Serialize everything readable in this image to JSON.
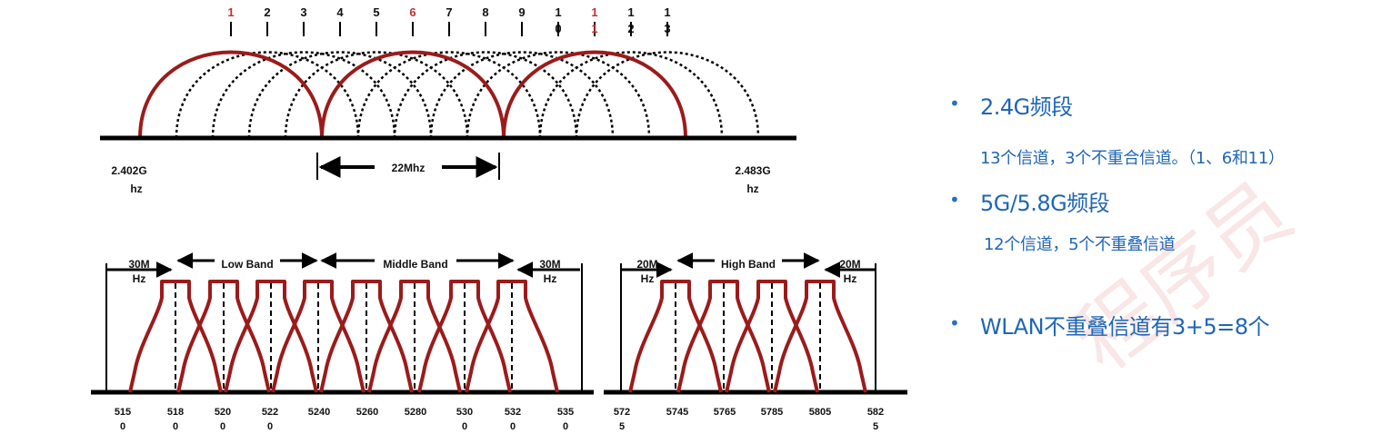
{
  "watermark": "程序员",
  "top_diagram": {
    "channel_ticks": [
      {
        "line1": "1",
        "line2": "",
        "red": true
      },
      {
        "line1": "2",
        "line2": "",
        "red": false
      },
      {
        "line1": "3",
        "line2": "",
        "red": false
      },
      {
        "line1": "4",
        "line2": "",
        "red": false
      },
      {
        "line1": "5",
        "line2": "",
        "red": false
      },
      {
        "line1": "6",
        "line2": "",
        "red": true
      },
      {
        "line1": "7",
        "line2": "",
        "red": false
      },
      {
        "line1": "8",
        "line2": "",
        "red": false
      },
      {
        "line1": "9",
        "line2": "",
        "red": false
      },
      {
        "line1": "1",
        "line2": "0",
        "red": false
      },
      {
        "line1": "1",
        "line2": "1",
        "red": true
      },
      {
        "line1": "1",
        "line2": "2",
        "red": false
      },
      {
        "line1": "1",
        "line2": "3",
        "red": false
      }
    ],
    "start_freq": {
      "line1": "2.402G",
      "line2": "hz"
    },
    "end_freq": {
      "line1": "2.483G",
      "line2": "hz"
    },
    "width_label": "22Mhz"
  },
  "bottom_left": {
    "guard_left": {
      "line1": "30M",
      "line2": "Hz"
    },
    "guard_right": {
      "line1": "30M",
      "line2": "Hz"
    },
    "band_low": "Low Band",
    "band_middle": "Middle Band",
    "freqs": [
      {
        "line1": "515",
        "line2": "0"
      },
      {
        "line1": "518",
        "line2": "0"
      },
      {
        "line1": "520",
        "line2": "0"
      },
      {
        "line1": "522",
        "line2": "0"
      },
      {
        "line1": "5240",
        "line2": ""
      },
      {
        "line1": "5260",
        "line2": ""
      },
      {
        "line1": "5280",
        "line2": ""
      },
      {
        "line1": "530",
        "line2": "0"
      },
      {
        "line1": "532",
        "line2": "0"
      },
      {
        "line1": "535",
        "line2": "0"
      }
    ]
  },
  "bottom_right": {
    "guard_left": {
      "line1": "20M",
      "line2": "Hz"
    },
    "guard_right": {
      "line1": "20M",
      "line2": "Hz"
    },
    "band_high": "High Band",
    "freqs": [
      {
        "line1": "572",
        "line2": "5"
      },
      {
        "line1": "5745",
        "line2": ""
      },
      {
        "line1": "5765",
        "line2": ""
      },
      {
        "line1": "5785",
        "line2": ""
      },
      {
        "line1": "5805",
        "line2": ""
      },
      {
        "line1": "582",
        "line2": "5"
      }
    ]
  },
  "bullets": [
    {
      "dot": "•",
      "title": "2.4G频段",
      "sub": "13个信道，3个不重合信道。（1、6和11）"
    },
    {
      "dot": "•",
      "title": "5G/5.8G频段",
      "sub": "12个信道，5个不重叠信道"
    },
    {
      "dot": "•",
      "title": "WLAN不重叠信道有3+5=8个",
      "sub": ""
    }
  ],
  "colors": {
    "curve_red": "#9b1b1b",
    "tick_red": "#c0302f",
    "text_blue": "#1f66b5"
  }
}
